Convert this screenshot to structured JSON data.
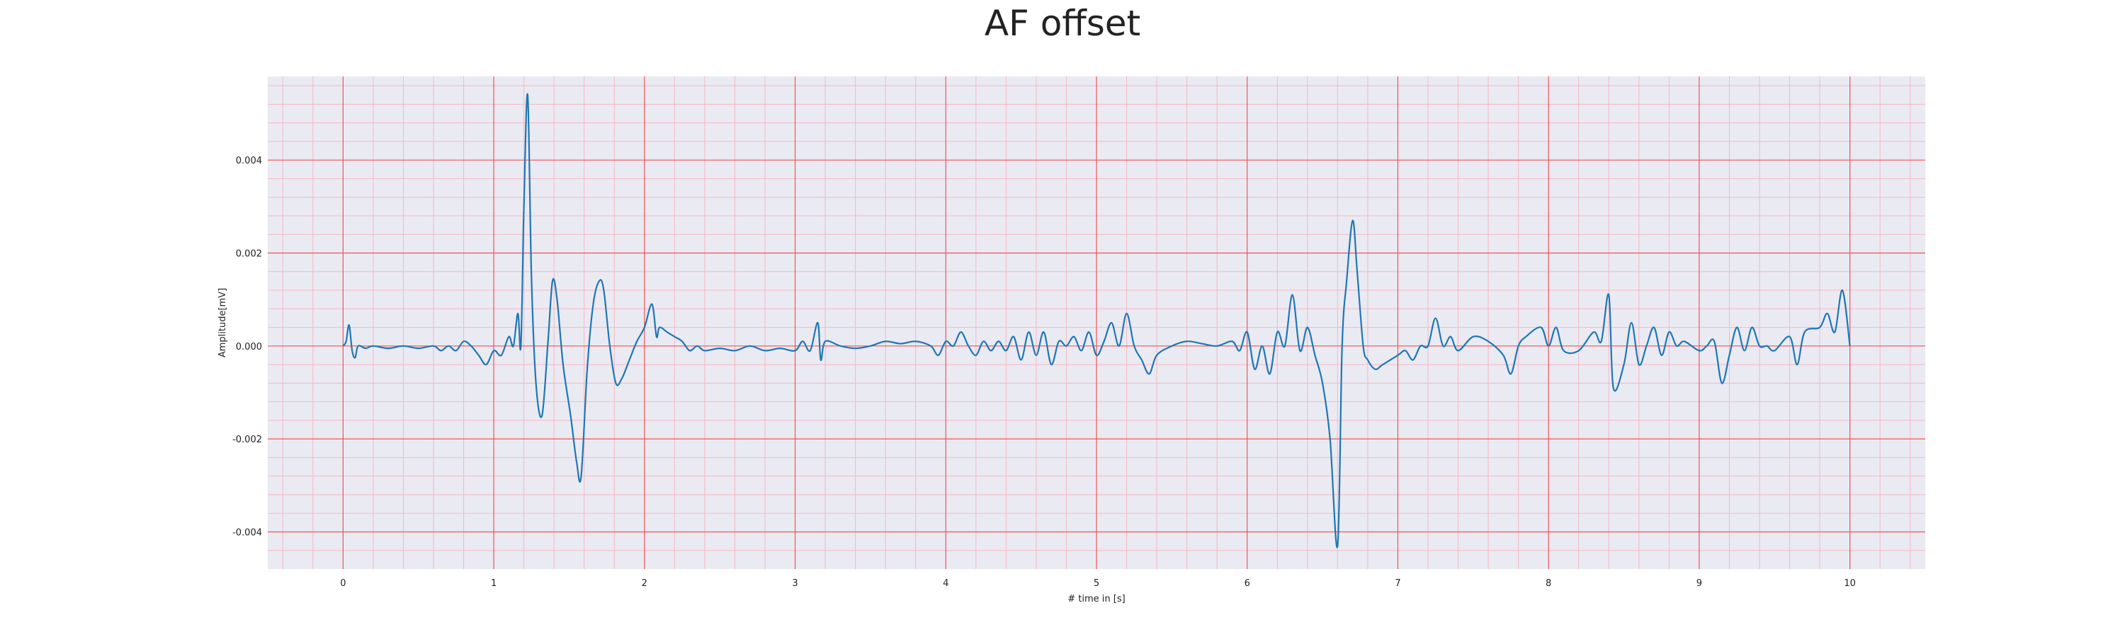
{
  "chart_data": {
    "type": "line",
    "title": "AF offset",
    "xlabel": "# time in [s]",
    "ylabel": "Amplitude[mV]",
    "xlim": [
      -0.5,
      10.5
    ],
    "ylim": [
      -0.0048,
      0.0058
    ],
    "xticks": [
      0,
      1,
      2,
      3,
      4,
      5,
      6,
      7,
      8,
      9,
      10
    ],
    "xtick_labels": [
      "0",
      "1",
      "2",
      "3",
      "4",
      "5",
      "6",
      "7",
      "8",
      "9",
      "10"
    ],
    "yticks": [
      -0.004,
      -0.002,
      0.0,
      0.002,
      0.004
    ],
    "ytick_labels": [
      "-0.004",
      "-0.002",
      "0.000",
      "0.002",
      "0.004"
    ],
    "grid": true,
    "grid_major_color": "#ee5555",
    "grid_minor_color": "#f5b8c4",
    "background_color": "#eaeaf2",
    "series": [
      {
        "color": "#1f77b4",
        "points": [
          [
            0.0,
            0.0
          ],
          [
            0.02,
            0.0001
          ],
          [
            0.04,
            0.00045
          ],
          [
            0.06,
            -0.0001
          ],
          [
            0.08,
            -0.00025
          ],
          [
            0.1,
            0.0
          ],
          [
            0.15,
            -5e-05
          ],
          [
            0.2,
            0.0
          ],
          [
            0.3,
            -5e-05
          ],
          [
            0.4,
            0.0
          ],
          [
            0.5,
            -5e-05
          ],
          [
            0.6,
            0.0
          ],
          [
            0.65,
            -0.0001
          ],
          [
            0.7,
            0.0
          ],
          [
            0.75,
            -0.0001
          ],
          [
            0.8,
            0.0001
          ],
          [
            0.85,
            0.0
          ],
          [
            0.9,
            -0.0002
          ],
          [
            0.95,
            -0.0004
          ],
          [
            1.0,
            -0.0001
          ],
          [
            1.05,
            -0.0002
          ],
          [
            1.1,
            0.0002
          ],
          [
            1.13,
            0.0
          ],
          [
            1.16,
            0.0007
          ],
          [
            1.18,
            0.0
          ],
          [
            1.2,
            0.003
          ],
          [
            1.225,
            0.0054
          ],
          [
            1.25,
            0.0015
          ],
          [
            1.28,
            -0.0008
          ],
          [
            1.32,
            -0.0015
          ],
          [
            1.36,
            0.0001
          ],
          [
            1.39,
            0.0014
          ],
          [
            1.42,
            0.001
          ],
          [
            1.46,
            -0.0004
          ],
          [
            1.51,
            -0.0015
          ],
          [
            1.55,
            -0.0025
          ],
          [
            1.58,
            -0.0028
          ],
          [
            1.62,
            -0.0005
          ],
          [
            1.66,
            0.0009
          ],
          [
            1.7,
            0.0014
          ],
          [
            1.73,
            0.0012
          ],
          [
            1.77,
            0.0
          ],
          [
            1.81,
            -0.0008
          ],
          [
            1.85,
            -0.0007
          ],
          [
            1.9,
            -0.0003
          ],
          [
            1.95,
            0.0001
          ],
          [
            2.0,
            0.0004
          ],
          [
            2.05,
            0.0009
          ],
          [
            2.08,
            0.0002
          ],
          [
            2.1,
            0.0004
          ],
          [
            2.15,
            0.0003
          ],
          [
            2.2,
            0.0002
          ],
          [
            2.25,
            0.0001
          ],
          [
            2.3,
            -0.0001
          ],
          [
            2.35,
            0.0
          ],
          [
            2.4,
            -0.0001
          ],
          [
            2.5,
            -5e-05
          ],
          [
            2.6,
            -0.0001
          ],
          [
            2.7,
            0.0
          ],
          [
            2.8,
            -0.0001
          ],
          [
            2.9,
            -5e-05
          ],
          [
            3.0,
            -0.0001
          ],
          [
            3.05,
            0.0001
          ],
          [
            3.1,
            -0.0001
          ],
          [
            3.15,
            0.0005
          ],
          [
            3.17,
            -0.0003
          ],
          [
            3.2,
            0.0001
          ],
          [
            3.3,
            0.0
          ],
          [
            3.4,
            -5e-05
          ],
          [
            3.5,
            0.0
          ],
          [
            3.6,
            0.0001
          ],
          [
            3.7,
            5e-05
          ],
          [
            3.8,
            0.0001
          ],
          [
            3.9,
            0.0
          ],
          [
            3.95,
            -0.0002
          ],
          [
            4.0,
            0.0001
          ],
          [
            4.05,
            0.0
          ],
          [
            4.1,
            0.0003
          ],
          [
            4.15,
            0.0
          ],
          [
            4.2,
            -0.0002
          ],
          [
            4.25,
            0.0001
          ],
          [
            4.3,
            -0.0001
          ],
          [
            4.35,
            0.0001
          ],
          [
            4.4,
            -0.0001
          ],
          [
            4.45,
            0.0002
          ],
          [
            4.5,
            -0.0003
          ],
          [
            4.55,
            0.0003
          ],
          [
            4.6,
            -0.0002
          ],
          [
            4.65,
            0.0003
          ],
          [
            4.7,
            -0.0004
          ],
          [
            4.75,
            0.0001
          ],
          [
            4.8,
            0.0
          ],
          [
            4.85,
            0.0002
          ],
          [
            4.9,
            -0.0001
          ],
          [
            4.95,
            0.0003
          ],
          [
            5.0,
            -0.0002
          ],
          [
            5.05,
            0.0001
          ],
          [
            5.1,
            0.0005
          ],
          [
            5.15,
            0.0
          ],
          [
            5.2,
            0.0007
          ],
          [
            5.25,
            0.0
          ],
          [
            5.3,
            -0.0003
          ],
          [
            5.35,
            -0.0006
          ],
          [
            5.4,
            -0.0002
          ],
          [
            5.5,
            0.0
          ],
          [
            5.6,
            0.0001
          ],
          [
            5.7,
            5e-05
          ],
          [
            5.8,
            0.0
          ],
          [
            5.9,
            0.0001
          ],
          [
            5.95,
            -0.0001
          ],
          [
            6.0,
            0.0003
          ],
          [
            6.05,
            -0.0005
          ],
          [
            6.1,
            0.0
          ],
          [
            6.15,
            -0.0006
          ],
          [
            6.2,
            0.0003
          ],
          [
            6.25,
            0.0
          ],
          [
            6.3,
            0.0011
          ],
          [
            6.35,
            -0.0001
          ],
          [
            6.4,
            0.0004
          ],
          [
            6.45,
            -0.0002
          ],
          [
            6.5,
            -0.0008
          ],
          [
            6.55,
            -0.002
          ],
          [
            6.6,
            -0.0043
          ],
          [
            6.63,
            0.0
          ],
          [
            6.66,
            0.0014
          ],
          [
            6.7,
            0.0027
          ],
          [
            6.73,
            0.0016
          ],
          [
            6.77,
            0.0
          ],
          [
            6.8,
            -0.0003
          ],
          [
            6.85,
            -0.0005
          ],
          [
            6.9,
            -0.0004
          ],
          [
            7.0,
            -0.0002
          ],
          [
            7.05,
            -0.0001
          ],
          [
            7.1,
            -0.0003
          ],
          [
            7.15,
            0.0
          ],
          [
            7.2,
            0.0
          ],
          [
            7.25,
            0.0006
          ],
          [
            7.3,
            0.0
          ],
          [
            7.35,
            0.0002
          ],
          [
            7.4,
            -0.0001
          ],
          [
            7.5,
            0.0002
          ],
          [
            7.6,
            0.0001
          ],
          [
            7.7,
            -0.0002
          ],
          [
            7.75,
            -0.0006
          ],
          [
            7.8,
            0.0
          ],
          [
            7.85,
            0.0002
          ],
          [
            7.95,
            0.0004
          ],
          [
            8.0,
            0.0
          ],
          [
            8.05,
            0.0004
          ],
          [
            8.1,
            -0.0001
          ],
          [
            8.2,
            -0.0001
          ],
          [
            8.3,
            0.0003
          ],
          [
            8.35,
            0.0001
          ],
          [
            8.4,
            0.0011
          ],
          [
            8.43,
            -0.0009
          ],
          [
            8.5,
            -0.0004
          ],
          [
            8.55,
            0.0005
          ],
          [
            8.6,
            -0.0004
          ],
          [
            8.65,
            0.0
          ],
          [
            8.7,
            0.0004
          ],
          [
            8.75,
            -0.0002
          ],
          [
            8.8,
            0.0003
          ],
          [
            8.85,
            0.0
          ],
          [
            8.9,
            0.0001
          ],
          [
            9.0,
            -0.0001
          ],
          [
            9.05,
            0.0
          ],
          [
            9.1,
            0.0001
          ],
          [
            9.15,
            -0.0008
          ],
          [
            9.2,
            -0.0002
          ],
          [
            9.25,
            0.0004
          ],
          [
            9.3,
            -0.0001
          ],
          [
            9.35,
            0.0004
          ],
          [
            9.4,
            0.0
          ],
          [
            9.45,
            0.0
          ],
          [
            9.5,
            -0.0001
          ],
          [
            9.6,
            0.0002
          ],
          [
            9.65,
            -0.0004
          ],
          [
            9.7,
            0.0003
          ],
          [
            9.8,
            0.0004
          ],
          [
            9.85,
            0.0007
          ],
          [
            9.9,
            0.0003
          ],
          [
            9.95,
            0.0012
          ],
          [
            10.0,
            0.0
          ]
        ]
      }
    ]
  }
}
